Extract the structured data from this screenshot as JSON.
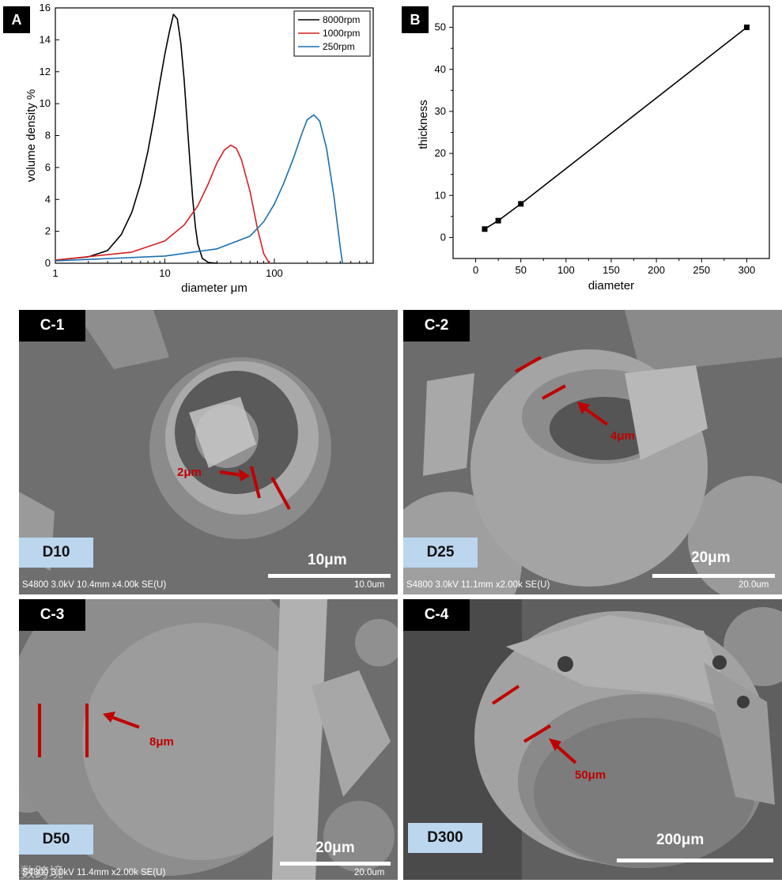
{
  "panel_labels": {
    "a": "A",
    "b": "B",
    "c1": "C-1",
    "c2": "C-2",
    "c3": "C-3",
    "c4": "C-4"
  },
  "chart_data": [
    {
      "type": "line",
      "xlabel": "diameter μm",
      "ylabel": "volume density %",
      "x_scale": "log",
      "xlim": [
        1,
        800
      ],
      "ylim": [
        0,
        16
      ],
      "x_ticks": [
        "1",
        "10",
        "100"
      ],
      "y_ticks": [
        "0",
        "2",
        "4",
        "6",
        "8",
        "10",
        "12",
        "14",
        "16"
      ],
      "legend_position": "top-right",
      "series": [
        {
          "name": "8000rpm",
          "color": "#000000",
          "x": [
            1,
            2,
            3,
            4,
            5,
            6,
            7,
            8,
            9,
            10,
            11,
            12,
            13,
            14,
            15,
            16,
            17,
            18,
            19,
            20,
            22,
            25,
            30
          ],
          "y": [
            0.2,
            0.4,
            0.8,
            1.8,
            3.2,
            5.0,
            7.0,
            9.2,
            11.3,
            13.1,
            14.5,
            15.6,
            15.3,
            13.8,
            11.5,
            8.8,
            6.2,
            4.0,
            2.3,
            1.2,
            0.3,
            0.05,
            0
          ]
        },
        {
          "name": "1000rpm",
          "color": "#d62020",
          "x": [
            1,
            5,
            10,
            15,
            20,
            25,
            30,
            35,
            40,
            45,
            50,
            60,
            70,
            80,
            90
          ],
          "y": [
            0.2,
            0.7,
            1.4,
            2.4,
            3.6,
            5.0,
            6.3,
            7.1,
            7.4,
            7.2,
            6.5,
            4.5,
            2.2,
            0.6,
            0
          ]
        },
        {
          "name": "250rpm",
          "color": "#1a6fb0",
          "x": [
            1,
            10,
            30,
            60,
            80,
            100,
            120,
            150,
            180,
            200,
            230,
            260,
            300,
            350,
            400,
            420
          ],
          "y": [
            0.15,
            0.45,
            0.9,
            1.7,
            2.6,
            3.7,
            4.9,
            6.6,
            8.2,
            9.0,
            9.3,
            8.9,
            7.2,
            4.2,
            1.0,
            0
          ]
        }
      ]
    },
    {
      "type": "line",
      "xlabel": "diameter",
      "ylabel": "thickness",
      "xlim": [
        -25,
        325
      ],
      "ylim": [
        -5,
        55
      ],
      "x_ticks": [
        "0",
        "50",
        "100",
        "150",
        "200",
        "250",
        "300"
      ],
      "y_ticks": [
        "0",
        "10",
        "20",
        "30",
        "40",
        "50"
      ],
      "series": [
        {
          "x": [
            10,
            25,
            50,
            300
          ],
          "y": [
            2,
            4,
            8,
            50
          ],
          "color": "#000000",
          "marker": "square"
        }
      ]
    }
  ],
  "sem_panels": {
    "c1": {
      "sample": "D10",
      "scale": "10μm",
      "annotation": "2μm",
      "info": "S4800 3.0kV 10.4mm x4.00k SE(U)",
      "info_scale": "10.0um"
    },
    "c2": {
      "sample": "D25",
      "scale": "20μm",
      "annotation": "4μm",
      "info": "S4800 3.0kV 11.1mm x2.00k SE(U)",
      "info_scale": "20.0um"
    },
    "c3": {
      "sample": "D50",
      "scale": "20μm",
      "annotation": "8μm",
      "info": "S4800 3.0kV 11.4mm x2.00k SE(U)",
      "info_scale": "20.0um"
    },
    "c4": {
      "sample": "D300",
      "scale": "200μm",
      "annotation": "50μm"
    }
  },
  "watermark": "大数跨境",
  "colors": {
    "annotation_red": "#c00000",
    "sample_tag": "#bcd6ee"
  }
}
